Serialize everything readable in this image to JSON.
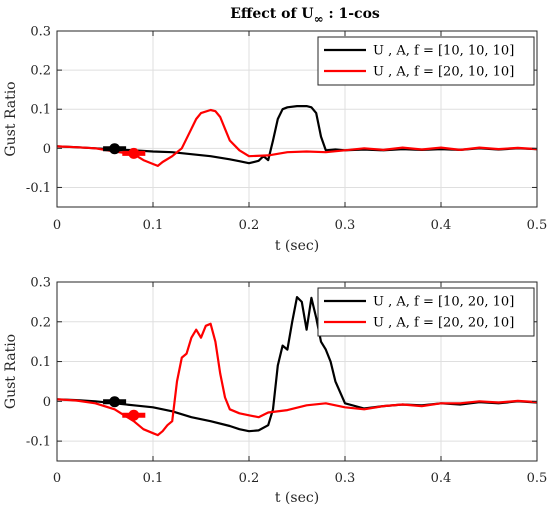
{
  "figure_title": {
    "main": "Effect of U",
    "sub": "∞",
    "rest": " : 1-cos"
  },
  "colors": {
    "black": "#000000",
    "red": "#ff0000",
    "grid": "#dfdfdf",
    "axis": "#262626"
  },
  "chart_data": [
    {
      "type": "line",
      "xlabel": "t (sec)",
      "ylabel": "Gust Ratio",
      "xlim": [
        0,
        0.5
      ],
      "ylim": [
        -0.15,
        0.3
      ],
      "xticks": [
        0,
        0.1,
        0.2,
        0.3,
        0.4,
        0.5
      ],
      "xtick_labels": [
        "0",
        "0.1",
        "0.2",
        "0.3",
        "0.4",
        "0.5"
      ],
      "yticks": [
        -0.1,
        0,
        0.1,
        0.2,
        0.3
      ],
      "ytick_labels": [
        "-0.1",
        "0",
        "0.1",
        "0.2",
        "0.3"
      ],
      "grid": true,
      "legend_position": "top-right",
      "series": [
        {
          "name": "U , A, f = [10, 10, 10]",
          "color": "#000000",
          "x": [
            0,
            0.02,
            0.04,
            0.06,
            0.08,
            0.1,
            0.12,
            0.14,
            0.16,
            0.18,
            0.19,
            0.2,
            0.21,
            0.215,
            0.22,
            0.225,
            0.23,
            0.235,
            0.24,
            0.25,
            0.26,
            0.265,
            0.27,
            0.275,
            0.28,
            0.29,
            0.3,
            0.32,
            0.34,
            0.36,
            0.38,
            0.4,
            0.42,
            0.44,
            0.46,
            0.48,
            0.5
          ],
          "y": [
            0.005,
            0.003,
            0.0,
            -0.003,
            -0.005,
            -0.008,
            -0.01,
            -0.015,
            -0.02,
            -0.028,
            -0.033,
            -0.038,
            -0.032,
            -0.02,
            -0.03,
            0.02,
            0.075,
            0.1,
            0.105,
            0.108,
            0.108,
            0.105,
            0.09,
            0.03,
            -0.005,
            -0.003,
            -0.005,
            -0.003,
            -0.005,
            -0.002,
            -0.004,
            -0.002,
            -0.004,
            0.0,
            -0.003,
            0.0,
            -0.002
          ]
        },
        {
          "name": "U , A, f = [20, 10, 10]",
          "color": "#ff0000",
          "x": [
            0,
            0.02,
            0.04,
            0.06,
            0.08,
            0.09,
            0.1,
            0.105,
            0.11,
            0.12,
            0.125,
            0.13,
            0.14,
            0.145,
            0.15,
            0.16,
            0.165,
            0.17,
            0.175,
            0.18,
            0.19,
            0.2,
            0.22,
            0.24,
            0.26,
            0.28,
            0.3,
            0.32,
            0.34,
            0.36,
            0.38,
            0.4,
            0.42,
            0.44,
            0.46,
            0.48,
            0.5
          ],
          "y": [
            0.005,
            0.003,
            0.0,
            -0.008,
            -0.015,
            -0.03,
            -0.04,
            -0.045,
            -0.035,
            -0.02,
            -0.01,
            0.0,
            0.05,
            0.075,
            0.09,
            0.098,
            0.095,
            0.08,
            0.05,
            0.02,
            -0.005,
            -0.02,
            -0.018,
            -0.01,
            -0.008,
            -0.01,
            -0.005,
            0.0,
            -0.004,
            0.002,
            -0.003,
            0.002,
            -0.004,
            0.002,
            -0.002,
            0.001,
            -0.002
          ]
        }
      ],
      "markers": [
        {
          "x": 0.06,
          "y": -0.001,
          "xerr": 0.012,
          "color": "#000000"
        },
        {
          "x": 0.08,
          "y": -0.013,
          "xerr": 0.012,
          "color": "#ff0000"
        }
      ]
    },
    {
      "type": "line",
      "xlabel": "t (sec)",
      "ylabel": "Gust Ratio",
      "xlim": [
        0,
        0.5
      ],
      "ylim": [
        -0.15,
        0.3
      ],
      "xticks": [
        0,
        0.1,
        0.2,
        0.3,
        0.4,
        0.5
      ],
      "xtick_labels": [
        "0",
        "0.1",
        "0.2",
        "0.3",
        "0.4",
        "0.5"
      ],
      "yticks": [
        -0.1,
        0,
        0.1,
        0.2,
        0.3
      ],
      "ytick_labels": [
        "-0.1",
        "0",
        "0.1",
        "0.2",
        "0.3"
      ],
      "grid": true,
      "legend_position": "top-right",
      "series": [
        {
          "name": "U , A, f = [10, 20, 10]",
          "color": "#000000",
          "x": [
            0,
            0.02,
            0.04,
            0.06,
            0.08,
            0.1,
            0.12,
            0.14,
            0.16,
            0.18,
            0.19,
            0.2,
            0.21,
            0.22,
            0.225,
            0.23,
            0.235,
            0.24,
            0.245,
            0.25,
            0.255,
            0.26,
            0.265,
            0.27,
            0.275,
            0.28,
            0.285,
            0.29,
            0.3,
            0.32,
            0.34,
            0.36,
            0.38,
            0.4,
            0.42,
            0.44,
            0.46,
            0.48,
            0.5
          ],
          "y": [
            0.005,
            0.003,
            0.0,
            -0.005,
            -0.01,
            -0.015,
            -0.025,
            -0.04,
            -0.05,
            -0.062,
            -0.07,
            -0.075,
            -0.073,
            -0.06,
            -0.02,
            0.09,
            0.14,
            0.13,
            0.2,
            0.262,
            0.25,
            0.18,
            0.26,
            0.21,
            0.15,
            0.13,
            0.1,
            0.05,
            -0.005,
            -0.018,
            -0.012,
            -0.008,
            -0.01,
            -0.005,
            -0.008,
            -0.002,
            -0.005,
            0.0,
            -0.003
          ]
        },
        {
          "name": "U , A, f = [20, 20, 10]",
          "color": "#ff0000",
          "x": [
            0,
            0.02,
            0.04,
            0.06,
            0.07,
            0.08,
            0.09,
            0.1,
            0.105,
            0.11,
            0.115,
            0.12,
            0.125,
            0.13,
            0.135,
            0.14,
            0.145,
            0.15,
            0.155,
            0.16,
            0.165,
            0.17,
            0.175,
            0.18,
            0.19,
            0.2,
            0.21,
            0.22,
            0.24,
            0.26,
            0.28,
            0.3,
            0.32,
            0.34,
            0.36,
            0.38,
            0.4,
            0.42,
            0.44,
            0.46,
            0.48,
            0.5
          ],
          "y": [
            0.005,
            0.002,
            -0.005,
            -0.02,
            -0.035,
            -0.05,
            -0.07,
            -0.08,
            -0.085,
            -0.075,
            -0.06,
            -0.05,
            0.05,
            0.11,
            0.12,
            0.16,
            0.18,
            0.16,
            0.19,
            0.195,
            0.15,
            0.07,
            0.01,
            -0.02,
            -0.03,
            -0.035,
            -0.04,
            -0.028,
            -0.022,
            -0.01,
            -0.005,
            -0.015,
            -0.02,
            -0.012,
            -0.008,
            -0.012,
            -0.005,
            -0.005,
            0.0,
            -0.003,
            0.001,
            -0.002
          ]
        }
      ],
      "markers": [
        {
          "x": 0.06,
          "y": -0.001,
          "xerr": 0.012,
          "color": "#000000"
        },
        {
          "x": 0.08,
          "y": -0.035,
          "xerr": 0.012,
          "color": "#ff0000"
        }
      ]
    }
  ]
}
